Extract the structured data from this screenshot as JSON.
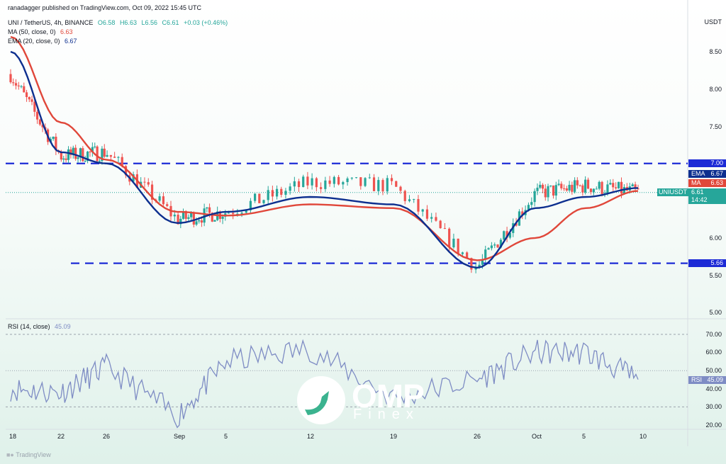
{
  "header": {
    "publisher": "ranadagger published on TradingView.com, Oct 09, 2022 15:45 UTC",
    "symbol": "UNI / TetherUS, 4h, BINANCE",
    "o": "O6.58",
    "h": "H6.63",
    "l": "L6.56",
    "c": "C6.61",
    "change": "+0.03 (+0.46%)",
    "ma_label": "MA (50, close, 0)",
    "ma_value": "6.63",
    "ema_label": "EMA (20, close, 0)",
    "ema_value": "6.67",
    "rsi_label": "RSI (14, close)",
    "rsi_value": "45.09"
  },
  "axis": {
    "currency": "USDT",
    "price_ticks": [
      "8.50",
      "8.00",
      "7.50",
      "6.00",
      "5.50",
      "5.00"
    ],
    "rsi_ticks": [
      "70.00",
      "60.00",
      "50.00",
      "40.00",
      "30.00",
      "20.00"
    ],
    "x_ticks": [
      "18",
      "22",
      "26",
      "Sep",
      "5",
      "12",
      "19",
      "26",
      "Oct",
      "5",
      "10"
    ]
  },
  "tags": {
    "level_high": "7.00",
    "ema": "EMA",
    "ema_val": "6.67",
    "ma": "MA",
    "ma_val": "6.63",
    "symbol": "UNIUSDT",
    "price": "6.61",
    "countdown": "14:42",
    "level_low": "5.66",
    "rsi": "RSI",
    "rsi_val": "45.09"
  },
  "footer": {
    "logo_text": "TradingView"
  },
  "watermark": {
    "brand": "OMP",
    "sub": "Finex"
  },
  "colors": {
    "up": "#26a69a",
    "down": "#ef5350",
    "ema": "#0d2f8f",
    "ma": "#e0473a",
    "level": "#1d2bd6",
    "rsi": "#7e8cc4"
  },
  "chart_data": {
    "type": "line",
    "title": "UNI / TetherUS, 4h, BINANCE",
    "x": [
      "18",
      "22",
      "26",
      "Sep",
      "5",
      "12",
      "19",
      "26",
      "Oct",
      "5",
      "10"
    ],
    "ylim": [
      5.0,
      8.8
    ],
    "horizontal_levels": [
      7.0,
      5.66
    ],
    "series": [
      {
        "name": "UNIUSDT",
        "values": [
          8.2,
          7.1,
          7.15,
          6.25,
          6.35,
          6.75,
          6.7,
          5.6,
          6.6,
          6.7,
          6.61
        ]
      },
      {
        "name": "EMA (20, close, 0)",
        "values": [
          8.5,
          7.15,
          7.0,
          6.2,
          6.35,
          6.55,
          6.45,
          5.6,
          6.4,
          6.55,
          6.67
        ]
      },
      {
        "name": "MA (50, close, 0)",
        "values": [
          8.7,
          7.55,
          7.05,
          6.35,
          6.3,
          6.45,
          6.4,
          5.7,
          6.0,
          6.4,
          6.63
        ]
      }
    ],
    "rsi": {
      "name": "RSI (14, close)",
      "ylim": [
        15,
        80
      ],
      "x": [
        "18",
        "22",
        "26",
        "Sep",
        "5",
        "12",
        "19",
        "26",
        "Oct",
        "5",
        "10"
      ],
      "values": [
        40,
        38,
        52,
        25,
        55,
        62,
        35,
        45,
        60,
        60,
        45.09
      ]
    }
  }
}
